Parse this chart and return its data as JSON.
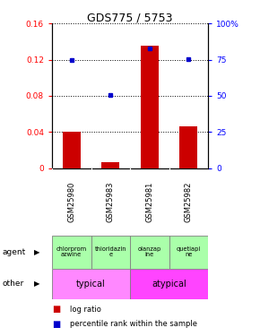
{
  "title": "GDS775 / 5753",
  "samples": [
    "GSM25980",
    "GSM25983",
    "GSM25981",
    "GSM25982"
  ],
  "log_ratio": [
    0.04,
    0.006,
    0.135,
    0.046
  ],
  "percentile_rank_pct": [
    75,
    50.5,
    83,
    75.5
  ],
  "ylim_left": [
    0,
    0.16
  ],
  "ylim_right": [
    0,
    100
  ],
  "yticks_left": [
    0,
    0.04,
    0.08,
    0.12,
    0.16
  ],
  "yticks_right": [
    0,
    25,
    50,
    75,
    100
  ],
  "ytick_labels_left": [
    "0",
    "0.04",
    "0.08",
    "0.12",
    "0.16"
  ],
  "ytick_labels_right": [
    "0",
    "25",
    "50",
    "75",
    "100%"
  ],
  "bar_color": "#cc0000",
  "marker_color": "#0000cc",
  "agent_labels": [
    "chlorprom\nazwine",
    "thioridazin\ne",
    "olanzap\nine",
    "quetiapi\nne"
  ],
  "agent_color": "#aaffaa",
  "typical_color": "#ff88ff",
  "atypical_color": "#ff44ff",
  "typical_label": "typical",
  "atypical_label": "atypical",
  "sample_bg_color": "#d8d8d8",
  "legend_log_ratio": "log ratio",
  "legend_percentile": "percentile rank within the sample"
}
